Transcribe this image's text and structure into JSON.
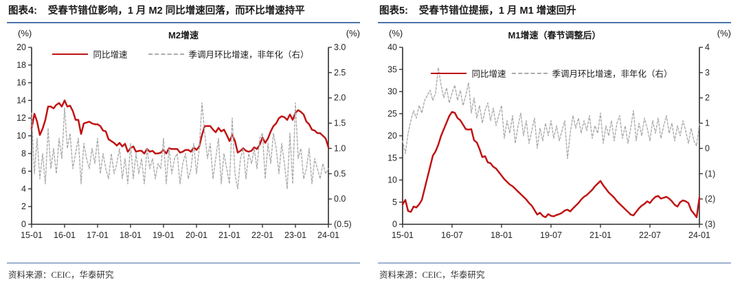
{
  "colors": {
    "series_red": "#c01212",
    "series_gray": "#ababab",
    "accent_blue": "#4a74a8",
    "axis": "#2b2b2b"
  },
  "panels": {
    "left": {
      "figure_label": "图表4:",
      "figure_title": "受春节错位影响，1 月 M2 同比增速回落，而环比增速持平",
      "left_unit": "(%)",
      "right_unit": "(%)",
      "chart_title": "M2增速",
      "legend": [
        {
          "label": "同比增速"
        },
        {
          "label": "季调月环比增速，非年化（右）"
        }
      ],
      "source": "资料来源：CEIC，华泰研究"
    },
    "right": {
      "figure_label": "图表5:",
      "figure_title": "受春节错位提振，1 月 M1 增速回升",
      "left_unit": "(%)",
      "right_unit": "(%)",
      "chart_title": "M1增速（春节调整后）",
      "legend": [
        {
          "label": "同比增速"
        },
        {
          "label": "季调月环比增速，非年化（右）"
        }
      ],
      "source": "资料来源：CEIC，华泰研究"
    }
  },
  "chart_data": [
    {
      "id": "m2",
      "type": "line",
      "title": "M2增速",
      "x_start": "2015-01",
      "x_end": "2024-01",
      "frequency": "monthly",
      "x_ticks": [
        {
          "i": 0,
          "l": "15-01"
        },
        {
          "i": 12,
          "l": "16-01"
        },
        {
          "i": 24,
          "l": "17-01"
        },
        {
          "i": 36,
          "l": "18-01"
        },
        {
          "i": 48,
          "l": "19-01"
        },
        {
          "i": 60,
          "l": "20-01"
        },
        {
          "i": 72,
          "l": "21-01"
        },
        {
          "i": 84,
          "l": "22-01"
        },
        {
          "i": 96,
          "l": "23-01"
        },
        {
          "i": 108,
          "l": "24-01"
        }
      ],
      "left_axis": {
        "unit": "(%)",
        "min": 0,
        "max": 20,
        "ticks": [
          {
            "v": 20,
            "l": "20"
          },
          {
            "v": 18,
            "l": "18"
          },
          {
            "v": 16,
            "l": "16"
          },
          {
            "v": 14,
            "l": "14"
          },
          {
            "v": 12,
            "l": "12"
          },
          {
            "v": 10,
            "l": "10"
          },
          {
            "v": 8,
            "l": "8"
          },
          {
            "v": 6,
            "l": "6"
          },
          {
            "v": 4,
            "l": "4"
          },
          {
            "v": 2,
            "l": "2"
          },
          {
            "v": 0,
            "l": "0"
          }
        ]
      },
      "right_axis": {
        "unit": "(%)",
        "min": -0.5,
        "max": 3.0,
        "ticks": [
          {
            "v": 3.0,
            "l": "3.0"
          },
          {
            "v": 2.5,
            "l": "2.5"
          },
          {
            "v": 2.0,
            "l": "2.0"
          },
          {
            "v": 1.5,
            "l": "1.5"
          },
          {
            "v": 1.0,
            "l": "1.0"
          },
          {
            "v": 0.5,
            "l": "0.5"
          },
          {
            "v": 0.0,
            "l": "0.0"
          },
          {
            "v": -0.5,
            "l": "(0.5)"
          }
        ]
      },
      "grid": false,
      "legend_position": "top-center",
      "series": [
        {
          "name": "同比增速",
          "axis": "left",
          "color": "#c01212",
          "style": "solid",
          "values": [
            10.8,
            12.5,
            11.6,
            10.1,
            10.8,
            11.8,
            13.3,
            13.3,
            13.1,
            13.5,
            13.7,
            13.3,
            14.0,
            13.3,
            13.4,
            12.8,
            11.8,
            11.8,
            10.2,
            11.4,
            11.5,
            11.6,
            11.4,
            11.3,
            11.3,
            11.1,
            10.6,
            10.5,
            9.6,
            9.4,
            9.2,
            8.9,
            9.2,
            8.8,
            9.1,
            8.2,
            8.6,
            8.8,
            8.2,
            8.3,
            8.3,
            8.0,
            8.5,
            8.2,
            8.3,
            8.0,
            8.0,
            8.1,
            8.4,
            8.0,
            8.6,
            8.5,
            8.5,
            8.5,
            8.1,
            8.2,
            8.4,
            8.4,
            8.2,
            8.7,
            8.4,
            8.8,
            10.1,
            11.1,
            11.1,
            11.1,
            10.7,
            10.4,
            10.9,
            10.5,
            10.7,
            10.1,
            9.4,
            10.1,
            9.4,
            8.1,
            8.3,
            8.6,
            8.3,
            8.2,
            8.3,
            8.7,
            8.5,
            9.0,
            9.8,
            9.2,
            9.7,
            10.5,
            11.1,
            11.4,
            12.0,
            12.2,
            12.1,
            11.8,
            12.4,
            11.8,
            12.6,
            12.9,
            12.7,
            12.4,
            11.6,
            11.3,
            10.7,
            10.6,
            10.3,
            10.3,
            10.0,
            9.7,
            8.7
          ]
        },
        {
          "name": "季调月环比增速，非年化（右）",
          "axis": "right",
          "color": "#ababab",
          "style": "dashed",
          "values": [
            1.7,
            0.5,
            1.2,
            0.4,
            0.9,
            0.3,
            1.4,
            0.6,
            1.0,
            0.5,
            1.2,
            0.8,
            1.8,
            1.0,
            1.3,
            0.6,
            0.9,
            1.2,
            0.3,
            1.1,
            0.8,
            0.6,
            1.0,
            0.7,
            1.2,
            0.5,
            0.9,
            0.6,
            0.4,
            0.9,
            0.5,
            0.7,
            1.0,
            0.4,
            0.8,
            0.3,
            1.1,
            0.4,
            0.9,
            0.5,
            0.8,
            0.3,
            1.0,
            0.6,
            0.8,
            0.4,
            0.7,
            0.6,
            1.2,
            0.3,
            1.0,
            0.5,
            0.8,
            0.9,
            0.3,
            0.7,
            0.9,
            0.4,
            0.6,
            1.1,
            0.5,
            1.0,
            1.9,
            1.3,
            0.8,
            1.1,
            0.4,
            0.8,
            1.2,
            0.3,
            0.9,
            0.6,
            0.3,
            1.6,
            0.5,
            0.2,
            0.8,
            1.0,
            0.4,
            0.9,
            0.7,
            1.0,
            0.6,
            1.2,
            1.3,
            0.4,
            1.1,
            0.7,
            1.3,
            1.0,
            0.5,
            1.1,
            0.7,
            0.2,
            1.3,
            0.3,
            1.9,
            0.8,
            1.0,
            0.4,
            0.6,
            1.0,
            0.3,
            0.8,
            0.6,
            0.4,
            0.7,
            0.5,
            0.6
          ]
        }
      ]
    },
    {
      "id": "m1",
      "type": "line",
      "title": "M1增速（春节调整后）",
      "x_start": "2015-01",
      "x_end": "2024-01",
      "frequency": "monthly",
      "x_ticks": [
        {
          "i": 0,
          "l": "15-01"
        },
        {
          "i": 18,
          "l": "16-07"
        },
        {
          "i": 36,
          "l": "18-01"
        },
        {
          "i": 54,
          "l": "19-07"
        },
        {
          "i": 72,
          "l": "21-01"
        },
        {
          "i": 90,
          "l": "22-07"
        },
        {
          "i": 108,
          "l": "24-01"
        }
      ],
      "left_axis": {
        "unit": "(%)",
        "min": 0,
        "max": 40,
        "ticks": [
          {
            "v": 40,
            "l": "40"
          },
          {
            "v": 35,
            "l": "35"
          },
          {
            "v": 30,
            "l": "30"
          },
          {
            "v": 25,
            "l": "25"
          },
          {
            "v": 20,
            "l": "20"
          },
          {
            "v": 15,
            "l": "15"
          },
          {
            "v": 10,
            "l": "10"
          },
          {
            "v": 5,
            "l": "5"
          },
          {
            "v": 0,
            "l": "0"
          }
        ]
      },
      "right_axis": {
        "unit": "(%)",
        "min": -3,
        "max": 4,
        "ticks": [
          {
            "v": 4,
            "l": "4"
          },
          {
            "v": 3,
            "l": "3"
          },
          {
            "v": 2,
            "l": "2"
          },
          {
            "v": 1,
            "l": "1"
          },
          {
            "v": 0,
            "l": "0"
          },
          {
            "v": -1,
            "l": "(1)"
          },
          {
            "v": -2,
            "l": "(2)"
          },
          {
            "v": -3,
            "l": "(3)"
          }
        ]
      },
      "grid": false,
      "legend_position": "top-center",
      "series": [
        {
          "name": "同比增速",
          "axis": "left",
          "color": "#c01212",
          "style": "solid",
          "values": [
            4.5,
            5.5,
            3.0,
            2.8,
            4.0,
            3.8,
            4.5,
            5.5,
            8.0,
            10.5,
            13.0,
            15.5,
            16.5,
            18.0,
            20.0,
            21.5,
            23.0,
            24.5,
            25.4,
            25.2,
            24.0,
            23.5,
            22.5,
            21.5,
            21.4,
            21.5,
            19.0,
            18.5,
            17.0,
            15.2,
            15.4,
            14.0,
            13.8,
            13.0,
            12.6,
            11.8,
            11.0,
            10.2,
            9.6,
            9.0,
            8.6,
            8.0,
            7.4,
            6.8,
            6.2,
            5.6,
            4.8,
            4.2,
            3.2,
            2.2,
            2.6,
            1.9,
            1.6,
            2.3,
            1.9,
            1.8,
            2.1,
            2.3,
            2.6,
            3.1,
            3.3,
            2.9,
            3.6,
            4.2,
            4.8,
            5.6,
            6.2,
            6.6,
            7.2,
            7.8,
            8.6,
            9.2,
            9.8,
            8.8,
            8.0,
            7.2,
            6.6,
            6.0,
            5.2,
            4.6,
            4.0,
            3.4,
            2.8,
            2.2,
            2.0,
            2.8,
            3.6,
            4.2,
            4.6,
            5.2,
            4.8,
            5.6,
            6.2,
            6.4,
            5.8,
            6.0,
            6.2,
            5.8,
            5.2,
            4.4,
            4.0,
            5.0,
            5.4,
            5.2,
            4.8,
            3.2,
            2.4,
            1.6,
            6.0
          ]
        },
        {
          "name": "季调月环比增速，非年化（右）",
          "axis": "right",
          "color": "#ababab",
          "style": "dashed",
          "values": [
            0.3,
            -0.2,
            0.6,
            1.1,
            1.5,
            1.2,
            1.7,
            1.4,
            1.9,
            2.1,
            2.3,
            1.9,
            2.2,
            3.2,
            2.5,
            2.0,
            2.4,
            1.8,
            2.2,
            2.5,
            1.9,
            2.3,
            1.7,
            2.1,
            2.6,
            1.4,
            2.0,
            1.2,
            1.7,
            1.0,
            1.5,
            1.8,
            1.1,
            1.6,
            0.9,
            1.3,
            1.7,
            0.4,
            1.1,
            0.6,
            1.3,
            0.2,
            0.9,
            1.4,
            0.5,
            1.1,
            0.2,
            0.7,
            1.2,
            0.0,
            0.8,
            0.3,
            1.0,
            0.5,
            1.1,
            0.4,
            0.9,
            0.3,
            0.7,
            1.1,
            -0.4,
            0.6,
            1.3,
            0.8,
            1.2,
            0.6,
            1.1,
            0.7,
            1.3,
            0.4,
            0.9,
            0.6,
            1.4,
            0.2,
            0.9,
            0.5,
            1.1,
            0.3,
            1.0,
            1.3,
            0.4,
            0.9,
            0.2,
            0.8,
            1.5,
            0.3,
            1.0,
            0.5,
            1.2,
            0.8,
            0.3,
            1.1,
            0.6,
            1.2,
            0.4,
            0.9,
            1.3,
            0.6,
            1.0,
            0.3,
            0.9,
            0.5,
            1.1,
            0.7,
            0.2,
            0.8,
            0.3,
            0.1,
            1.0
          ]
        }
      ]
    }
  ]
}
